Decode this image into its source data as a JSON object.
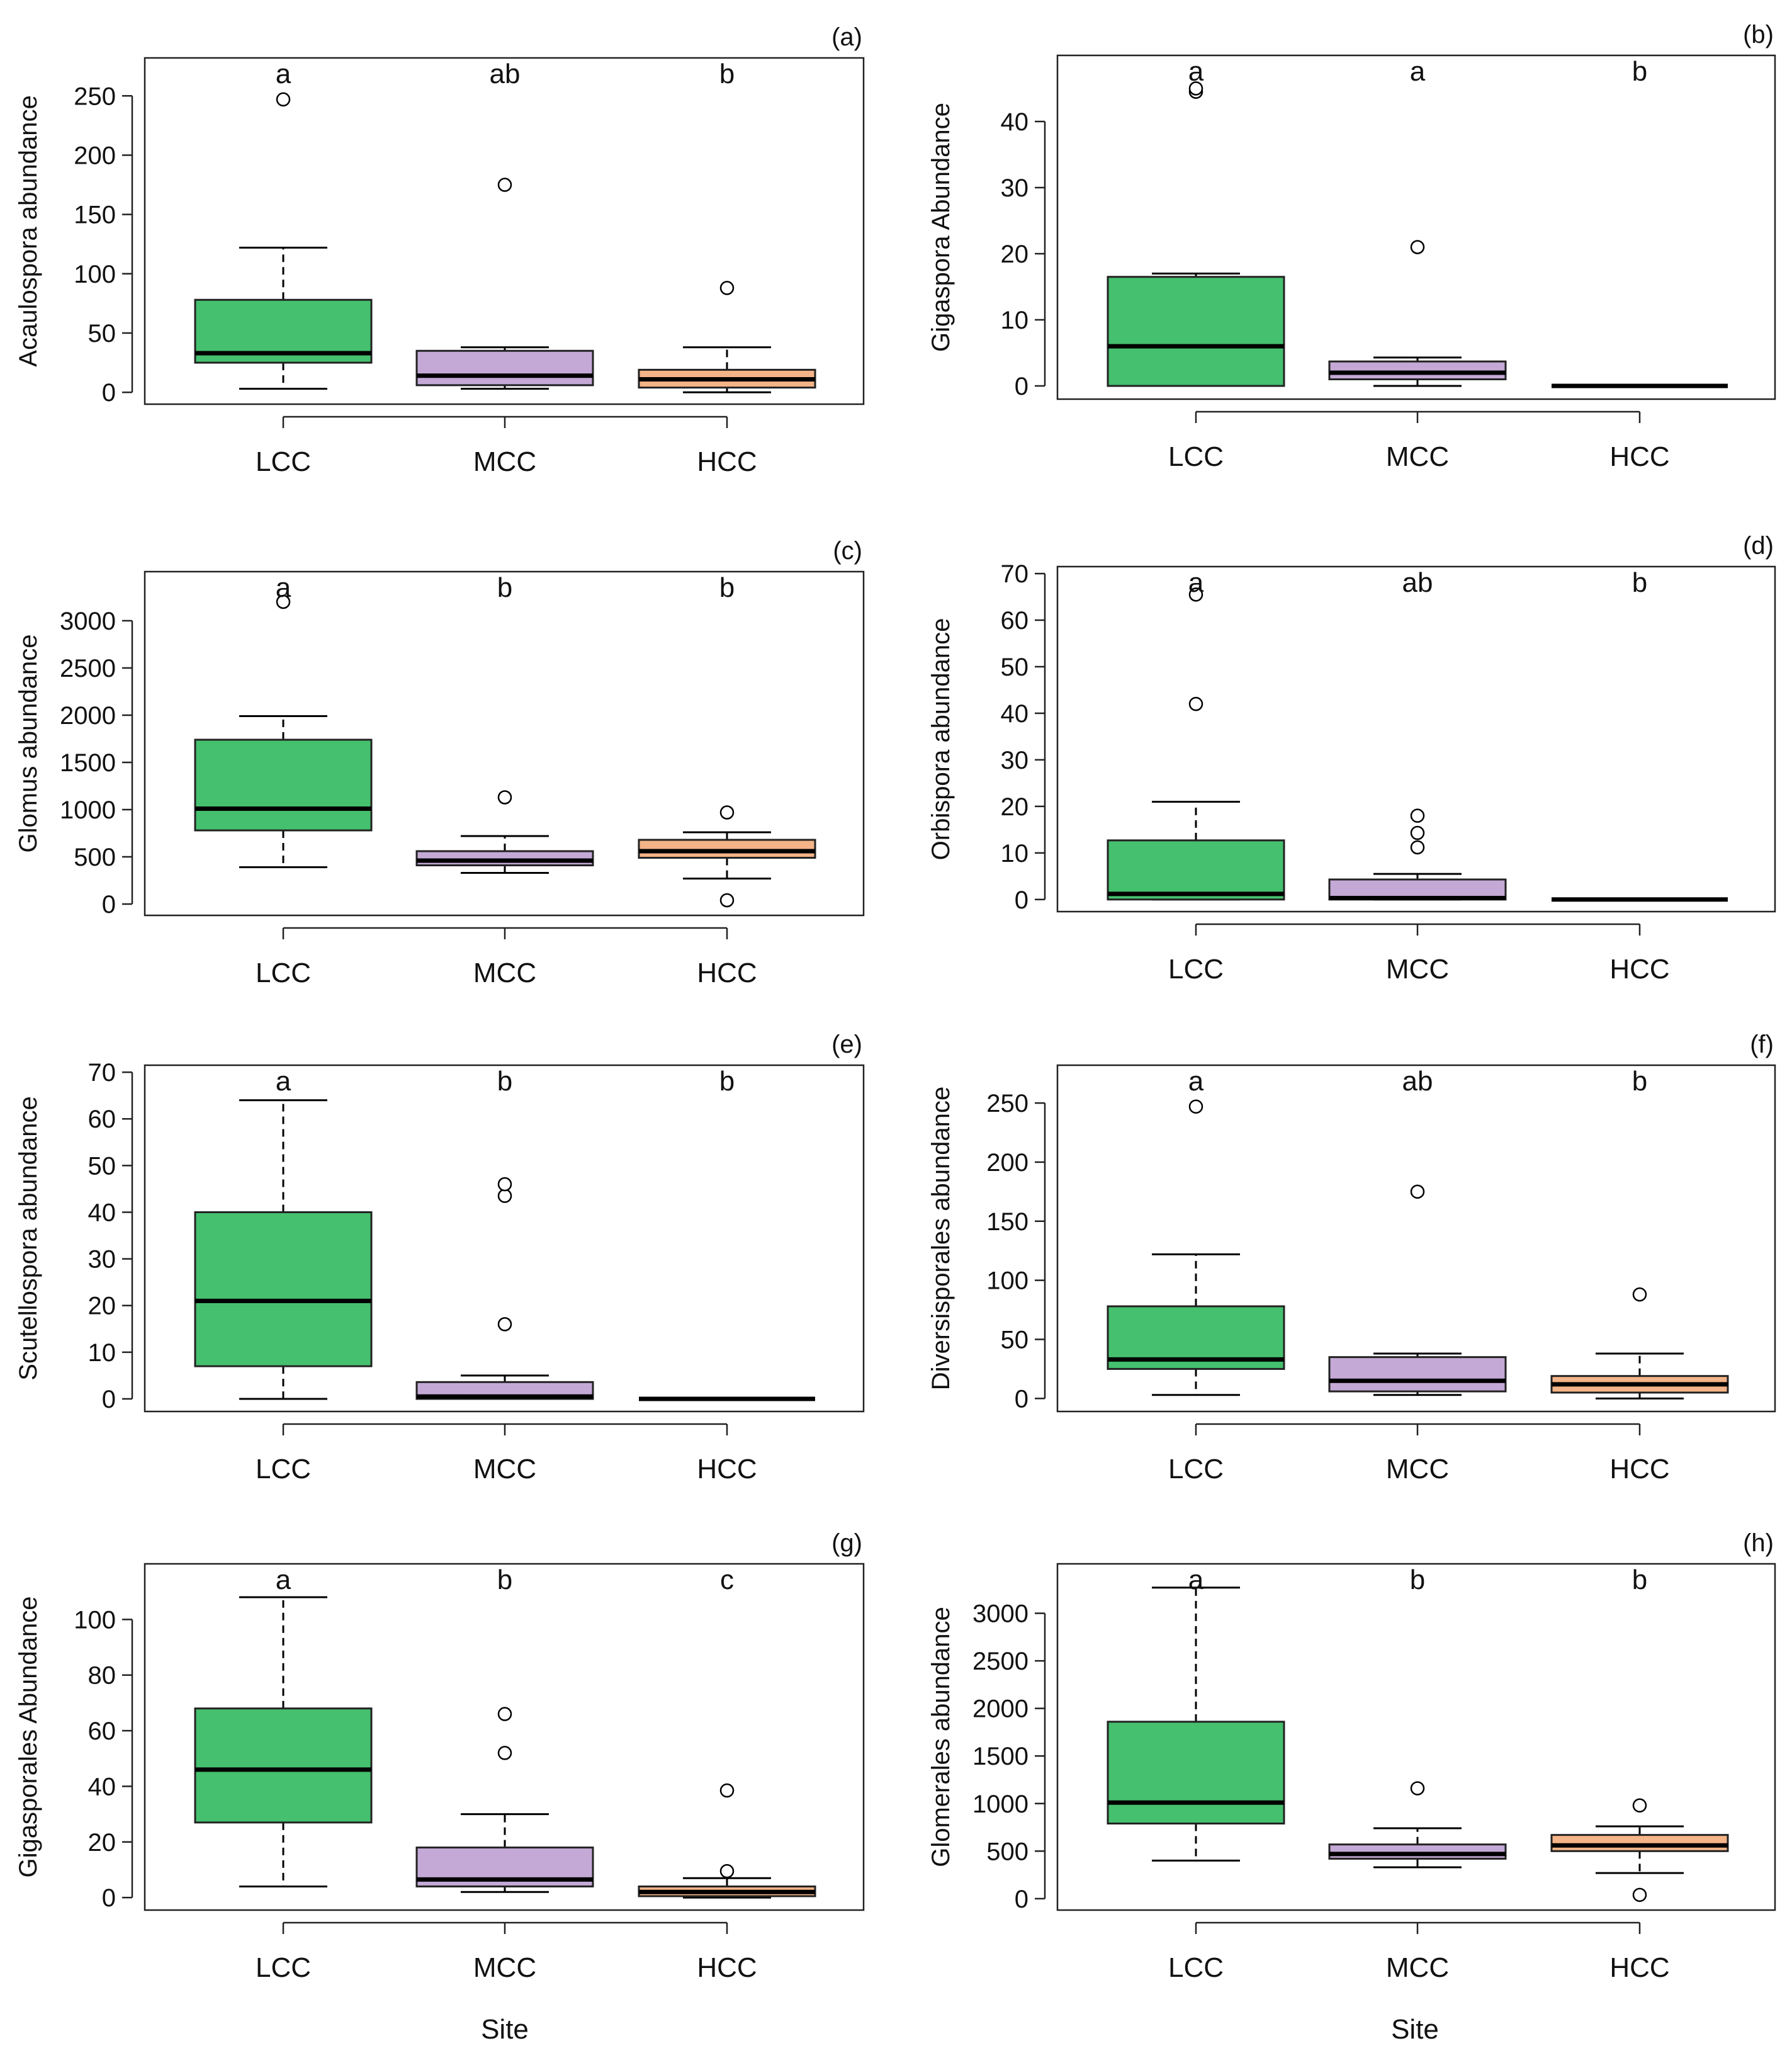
{
  "colors": {
    "LCC": "#45c06e",
    "MCC": "#c4a9d6",
    "HCC": "#f4b488",
    "line": "#000000"
  },
  "sites": [
    "LCC",
    "MCC",
    "HCC"
  ],
  "site_label": "Site",
  "chart_data": [
    {
      "type": "boxplot",
      "panel": "(a)",
      "ylabel": "Acaulospora abundance",
      "yticks": [
        0,
        50,
        100,
        150,
        200,
        250
      ],
      "ylim": [
        -10,
        282
      ],
      "categories": [
        "LCC",
        "MCC",
        "HCC"
      ],
      "boxes": [
        {
          "min": 3,
          "q1": 25,
          "median": 33,
          "q3": 78,
          "max": 122,
          "outliers": [
            247
          ]
        },
        {
          "min": 3,
          "q1": 6,
          "median": 14,
          "q3": 35,
          "max": 38,
          "outliers": [
            175
          ]
        },
        {
          "min": 0,
          "q1": 4,
          "median": 11,
          "q3": 19,
          "max": 38,
          "outliers": [
            88
          ]
        }
      ],
      "letters": [
        "a",
        "ab",
        "b"
      ]
    },
    {
      "type": "boxplot",
      "panel": "(b)",
      "ylabel": "Gigaspora Abundance",
      "yticks": [
        0,
        10,
        20,
        30,
        40
      ],
      "ylim": [
        -2,
        50
      ],
      "categories": [
        "LCC",
        "MCC",
        "HCC"
      ],
      "boxes": [
        {
          "min": 0,
          "q1": 0,
          "median": 6,
          "q3": 16.5,
          "max": 17,
          "outliers": [
            44.5,
            45
          ]
        },
        {
          "min": 0,
          "q1": 1,
          "median": 2,
          "q3": 3.7,
          "max": 4.3,
          "outliers": [
            21
          ]
        },
        {
          "min": 0,
          "q1": 0,
          "median": 0,
          "q3": 0,
          "max": 0,
          "outliers": []
        }
      ],
      "letters": [
        "a",
        "a",
        "b"
      ]
    },
    {
      "type": "boxplot",
      "panel": "(c)",
      "ylabel": "Glomus abundance",
      "yticks": [
        0,
        500,
        1000,
        1500,
        2000,
        2500,
        3000
      ],
      "ylim": [
        -120,
        3520
      ],
      "categories": [
        "LCC",
        "MCC",
        "HCC"
      ],
      "boxes": [
        {
          "min": 390,
          "q1": 780,
          "median": 1010,
          "q3": 1740,
          "max": 1990,
          "outliers": [
            3200
          ]
        },
        {
          "min": 330,
          "q1": 410,
          "median": 460,
          "q3": 560,
          "max": 720,
          "outliers": [
            1130
          ]
        },
        {
          "min": 270,
          "q1": 490,
          "median": 560,
          "q3": 680,
          "max": 760,
          "outliers": [
            40,
            970
          ]
        }
      ],
      "letters": [
        "a",
        "b",
        "b"
      ]
    },
    {
      "type": "boxplot",
      "panel": "(d)",
      "ylabel": "Orbispora abundance",
      "yticks": [
        0,
        10,
        20,
        30,
        40,
        50,
        60,
        70
      ],
      "ylim": [
        -2.6,
        71.5
      ],
      "categories": [
        "LCC",
        "MCC",
        "HCC"
      ],
      "boxes": [
        {
          "min": 0,
          "q1": 0,
          "median": 1.2,
          "q3": 12.7,
          "max": 21,
          "outliers": [
            42,
            65.5
          ]
        },
        {
          "min": 0,
          "q1": 0,
          "median": 0.3,
          "q3": 4.3,
          "max": 5.5,
          "outliers": [
            11.2,
            14.3,
            18
          ]
        },
        {
          "min": 0,
          "q1": 0,
          "median": 0,
          "q3": 0,
          "max": 0,
          "outliers": []
        }
      ],
      "letters": [
        "a",
        "ab",
        "b"
      ]
    },
    {
      "type": "boxplot",
      "panel": "(e)",
      "ylabel": "Scutellospora abundance",
      "yticks": [
        0,
        10,
        20,
        30,
        40,
        50,
        60,
        70
      ],
      "ylim": [
        -2.7,
        71.5
      ],
      "categories": [
        "LCC",
        "MCC",
        "HCC"
      ],
      "boxes": [
        {
          "min": 0,
          "q1": 7,
          "median": 21,
          "q3": 40,
          "max": 64,
          "outliers": []
        },
        {
          "min": 0,
          "q1": 0,
          "median": 0.5,
          "q3": 3.6,
          "max": 5,
          "outliers": [
            16,
            43.5,
            46
          ]
        },
        {
          "min": 0,
          "q1": 0,
          "median": 0,
          "q3": 0,
          "max": 0,
          "outliers": []
        }
      ],
      "letters": [
        "a",
        "b",
        "b"
      ]
    },
    {
      "type": "boxplot",
      "panel": "(f)",
      "ylabel": "Diversisporales abundance",
      "yticks": [
        0,
        50,
        100,
        150,
        200,
        250
      ],
      "ylim": [
        -11,
        282
      ],
      "categories": [
        "LCC",
        "MCC",
        "HCC"
      ],
      "boxes": [
        {
          "min": 3,
          "q1": 25,
          "median": 33,
          "q3": 78,
          "max": 122,
          "outliers": [
            247
          ]
        },
        {
          "min": 3,
          "q1": 6,
          "median": 15,
          "q3": 35,
          "max": 38,
          "outliers": [
            175
          ]
        },
        {
          "min": 0,
          "q1": 5,
          "median": 12,
          "q3": 19,
          "max": 38,
          "outliers": [
            88
          ]
        }
      ],
      "letters": [
        "a",
        "ab",
        "b"
      ]
    },
    {
      "type": "boxplot",
      "panel": "(g)",
      "ylabel": "Gigasporales Abundance",
      "yticks": [
        0,
        20,
        40,
        60,
        80,
        100
      ],
      "ylim": [
        -4.5,
        120
      ],
      "categories": [
        "LCC",
        "MCC",
        "HCC"
      ],
      "boxes": [
        {
          "min": 4,
          "q1": 27,
          "median": 46,
          "q3": 68,
          "max": 108,
          "outliers": []
        },
        {
          "min": 2,
          "q1": 4,
          "median": 6.5,
          "q3": 18,
          "max": 30,
          "outliers": [
            52,
            66
          ]
        },
        {
          "min": 0,
          "q1": 0.5,
          "median": 2,
          "q3": 4,
          "max": 7,
          "outliers": [
            9.5,
            38.5
          ]
        }
      ],
      "letters": [
        "a",
        "b",
        "c"
      ]
    },
    {
      "type": "boxplot",
      "panel": "(h)",
      "ylabel": "Glomerales abundance",
      "yticks": [
        0,
        500,
        1000,
        1500,
        2000,
        2500,
        3000
      ],
      "ylim": [
        -120,
        3520
      ],
      "categories": [
        "LCC",
        "MCC",
        "HCC"
      ],
      "boxes": [
        {
          "min": 400,
          "q1": 790,
          "median": 1010,
          "q3": 1860,
          "max": 3270,
          "outliers": []
        },
        {
          "min": 330,
          "q1": 420,
          "median": 470,
          "q3": 570,
          "max": 740,
          "outliers": [
            1160
          ]
        },
        {
          "min": 270,
          "q1": 500,
          "median": 560,
          "q3": 670,
          "max": 760,
          "outliers": [
            40,
            980
          ]
        }
      ],
      "letters": [
        "a",
        "b",
        "b"
      ]
    }
  ]
}
